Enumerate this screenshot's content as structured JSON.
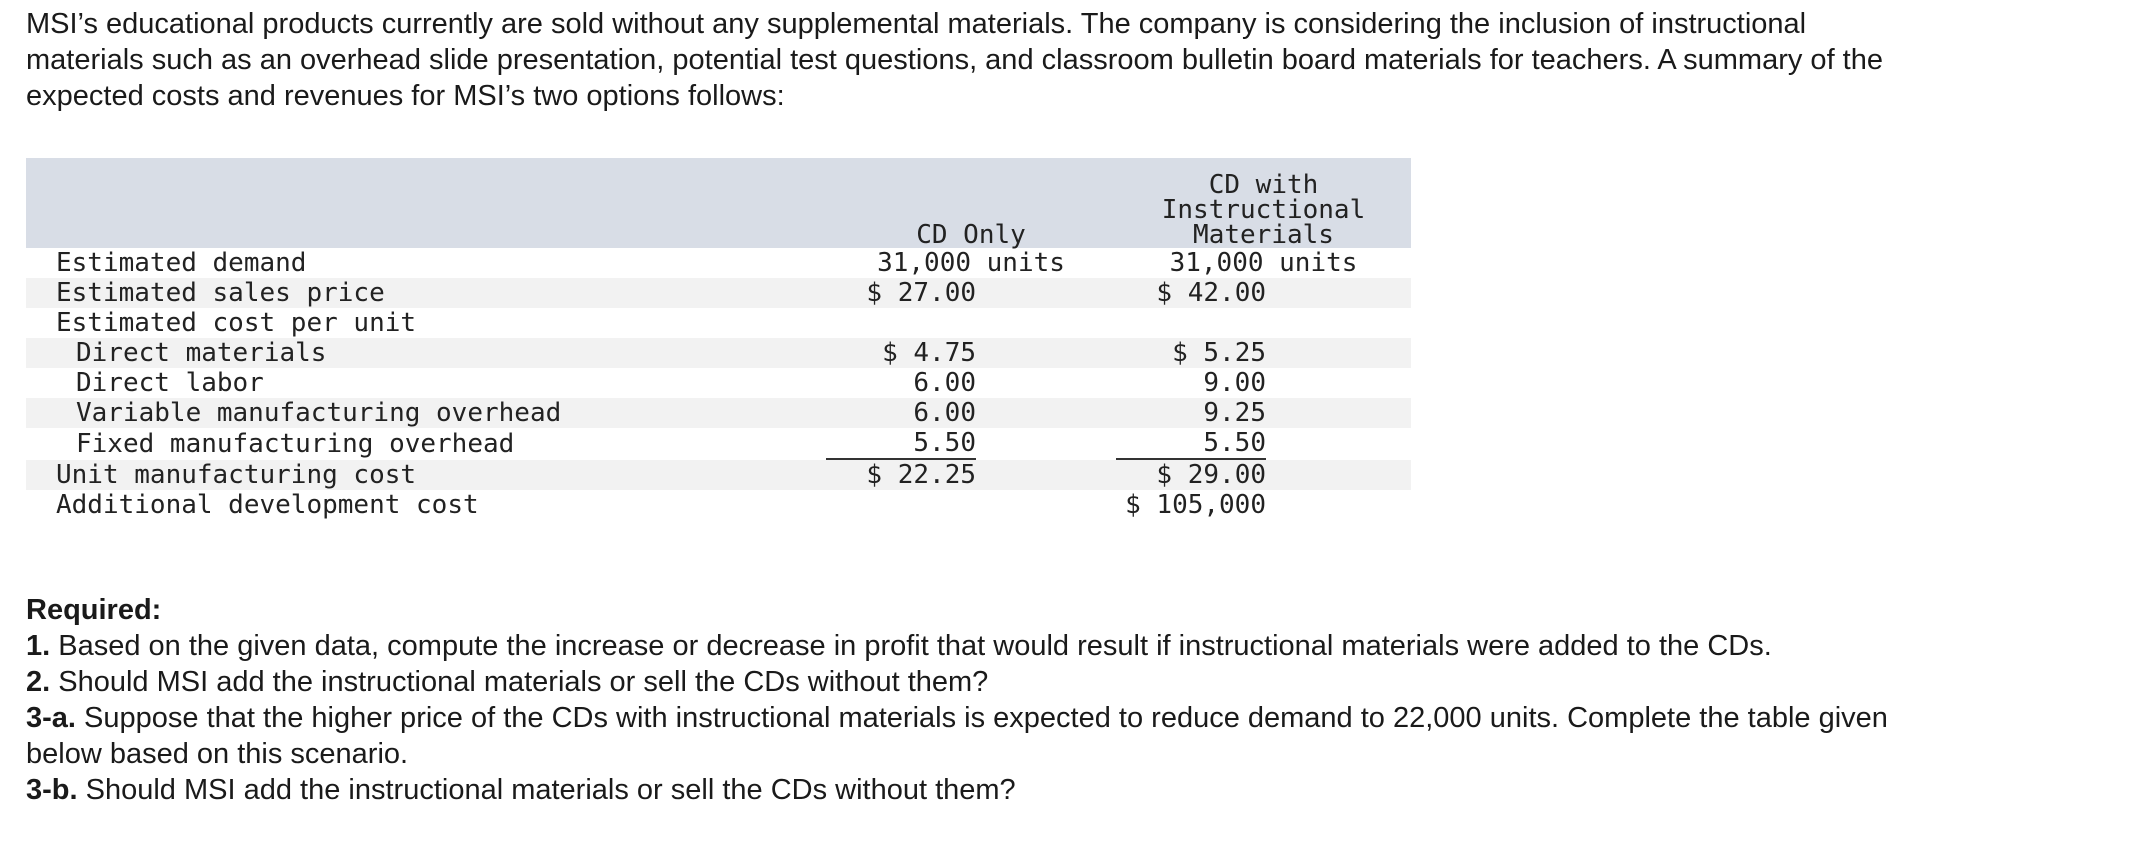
{
  "intro": "MSI’s educational products currently are sold without any supplemental materials. The company is considering the inclusion of instructional materials such as an overhead slide presentation, potential test questions, and classroom bulletin board materials for teachers. A summary of the expected costs and revenues for MSI’s two options follows:",
  "table": {
    "col1_header": "CD Only",
    "col2_header_line1": "CD with",
    "col2_header_line2": "Instructional",
    "col2_header_line3": "Materials",
    "rows": [
      {
        "label": "Estimated demand",
        "v1": "31,000 units",
        "v2": "31,000 units"
      },
      {
        "label": "Estimated sales price",
        "v1": "$ 27.00",
        "v2": "$ 42.00"
      },
      {
        "label": "Estimated cost per unit",
        "v1": "",
        "v2": ""
      },
      {
        "label": "Direct materials",
        "v1": "$ 4.75",
        "v2": "$ 5.25"
      },
      {
        "label": "Direct labor",
        "v1": "6.00",
        "v2": "9.00"
      },
      {
        "label": "Variable manufacturing overhead",
        "v1": "6.00",
        "v2": "9.25"
      },
      {
        "label": "Fixed manufacturing overhead",
        "v1": "5.50",
        "v2": "5.50"
      },
      {
        "label": "Unit manufacturing cost",
        "v1": "$ 22.25",
        "v2": "$ 29.00"
      },
      {
        "label": "Additional development cost",
        "v1": "",
        "v2": "$ 105,000"
      }
    ]
  },
  "required": {
    "heading": "Required:",
    "q1_num": "1.",
    "q1_text": "Based on the given data, compute the increase or decrease in profit that would result if instructional materials were added to the CDs.",
    "q2_num": "2.",
    "q2_text": "Should MSI add the instructional materials or sell the CDs without them?",
    "q3a_num": "3-a.",
    "q3a_text": "Suppose that the higher price of the CDs with instructional materials is expected to reduce demand to 22,000 units. Complete the table given below based on this scenario.",
    "q3b_num": "3-b.",
    "q3b_text": "Should MSI add the instructional materials or sell the CDs without them?"
  }
}
